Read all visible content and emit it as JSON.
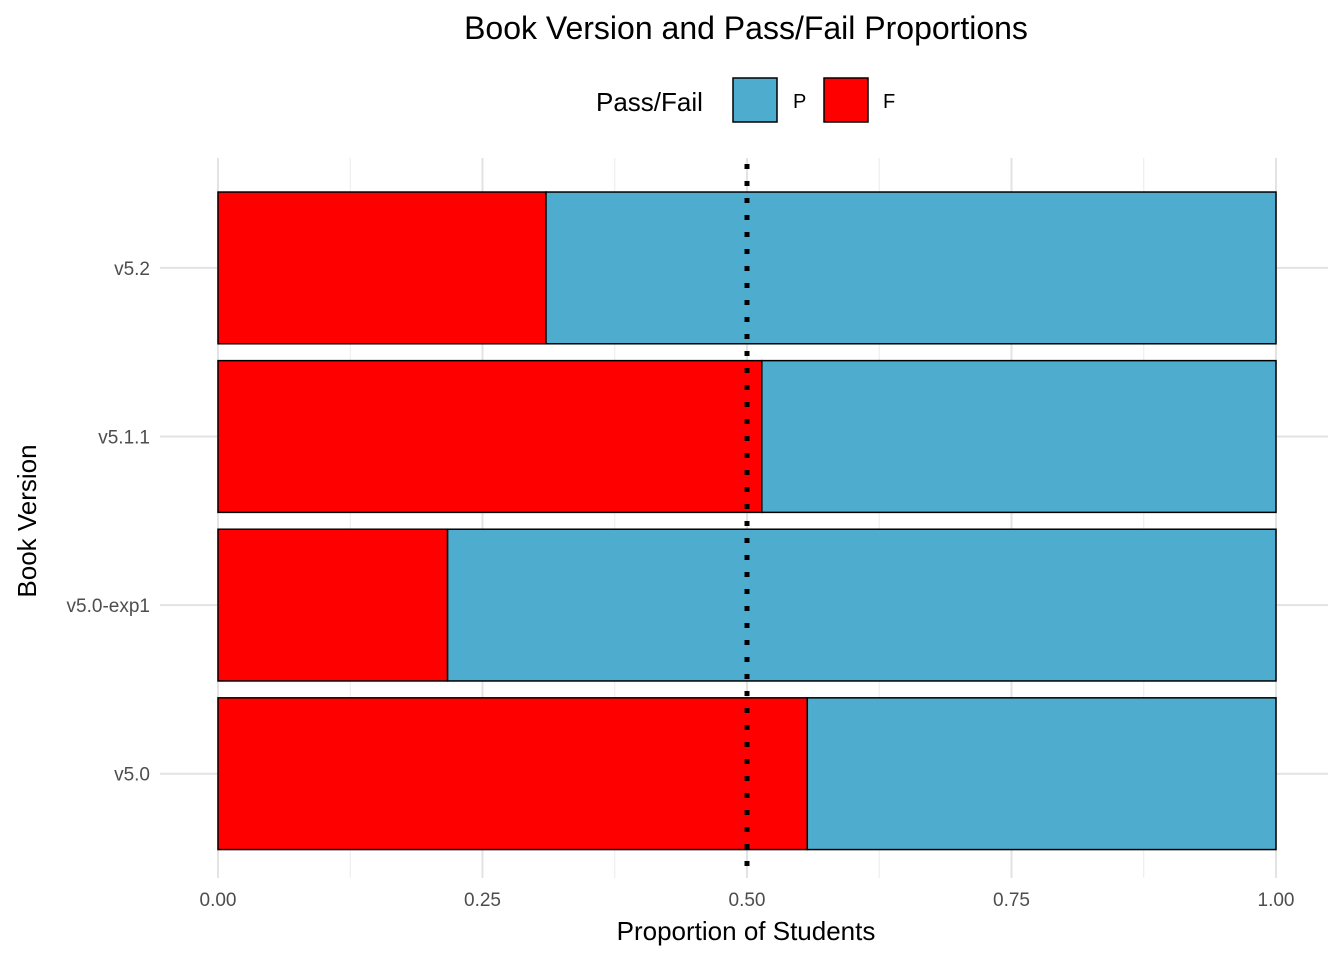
{
  "chart_data": {
    "type": "bar",
    "orientation": "horizontal",
    "stacked": true,
    "title": "Book Version and Pass/Fail Proportions",
    "xlabel": "Proportion of Students",
    "ylabel": "Book Version",
    "xlim": [
      0,
      1
    ],
    "x_ticks": [
      "0.00",
      "0.25",
      "0.50",
      "0.75",
      "1.00"
    ],
    "categories": [
      "v5.0",
      "v5.0-exp1",
      "v5.1.1",
      "v5.2"
    ],
    "series": [
      {
        "name": "F",
        "color": "#ff0000",
        "values": [
          0.557,
          0.217,
          0.514,
          0.31
        ]
      },
      {
        "name": "P",
        "color": "#4eadcf",
        "values": [
          0.443,
          0.783,
          0.486,
          0.69
        ]
      }
    ],
    "legend": {
      "title": "Pass/Fail",
      "position": "top",
      "order": [
        "P",
        "F"
      ]
    },
    "reference_line": {
      "x": 0.5,
      "style": "dotted",
      "color": "#000000"
    },
    "grid": true
  }
}
